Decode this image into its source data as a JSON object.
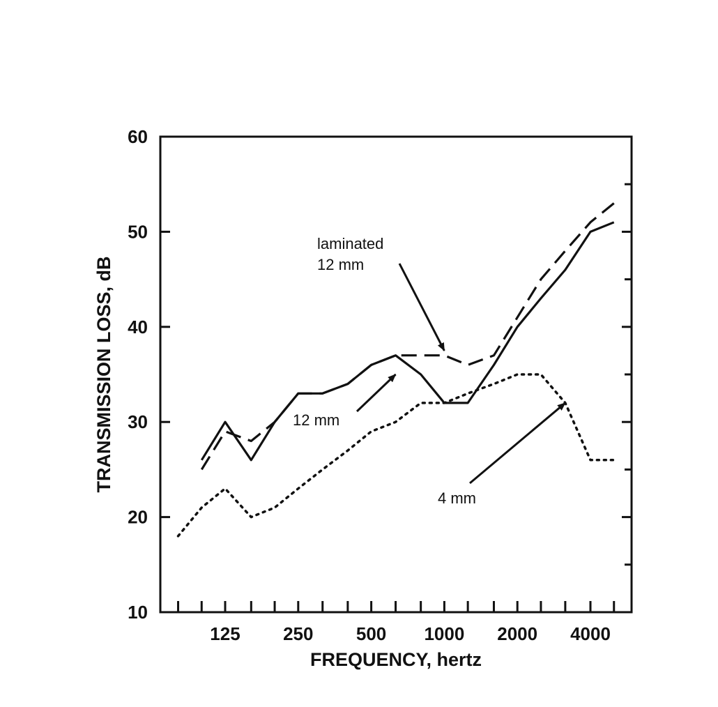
{
  "chart_data": {
    "type": "line",
    "xlabel": "FREQUENCY, hertz",
    "ylabel": "TRANSMISSION LOSS, dB",
    "ylim": [
      10,
      60
    ],
    "yticks": [
      10,
      20,
      30,
      40,
      50,
      60
    ],
    "x_scale": "log",
    "x_ticks": [
      80,
      100,
      125,
      160,
      200,
      250,
      315,
      400,
      500,
      630,
      800,
      1000,
      1250,
      1600,
      2000,
      2500,
      3150,
      4000,
      5000
    ],
    "x_tick_labels": [
      {
        "value": 125,
        "label": "125"
      },
      {
        "value": 250,
        "label": "250"
      },
      {
        "value": 500,
        "label": "500"
      },
      {
        "value": 1000,
        "label": "1000"
      },
      {
        "value": 2000,
        "label": "2000"
      },
      {
        "value": 4000,
        "label": "4000"
      }
    ],
    "grid": false,
    "series": [
      {
        "name": "12 mm",
        "style": "solid",
        "x": [
          100,
          125,
          160,
          200,
          250,
          315,
          400,
          500,
          630,
          800,
          1000,
          1250,
          1600,
          2000,
          2500,
          3150,
          4000,
          5000
        ],
        "y": [
          26,
          30,
          26,
          30,
          33,
          33,
          34,
          36,
          37,
          35,
          32,
          32,
          36,
          40,
          43,
          46,
          50,
          51
        ]
      },
      {
        "name": "laminated 12 mm",
        "style": "dashed",
        "x": [
          100,
          125,
          160,
          200,
          250,
          315,
          400,
          500,
          630,
          800,
          1000,
          1250,
          1600,
          2000,
          2500,
          3150,
          4000,
          5000
        ],
        "y": [
          25,
          29,
          28,
          30,
          33,
          33,
          34,
          36,
          37,
          37,
          37,
          36,
          37,
          41,
          45,
          48,
          51,
          53
        ]
      },
      {
        "name": "4 mm",
        "style": "dotted",
        "x": [
          80,
          100,
          125,
          160,
          200,
          250,
          315,
          400,
          500,
          630,
          800,
          1000,
          1250,
          1600,
          2000,
          2500,
          3150,
          4000,
          5000
        ],
        "y": [
          18,
          21,
          23,
          20,
          21,
          23,
          25,
          27,
          29,
          30,
          32,
          32,
          33,
          34,
          35,
          35,
          32,
          26,
          26
        ]
      }
    ],
    "annotations": [
      {
        "lines": [
          "laminated",
          "12 mm"
        ],
        "series": "laminated 12 mm",
        "arrow_to": {
          "x": 1000,
          "y": 37.5
        }
      },
      {
        "lines": [
          "12 mm"
        ],
        "series": "12 mm",
        "arrow_to": {
          "x": 630,
          "y": 35
        }
      },
      {
        "lines": [
          "4 mm"
        ],
        "series": "4 mm",
        "arrow_to": {
          "x": 3150,
          "y": 32
        }
      }
    ]
  }
}
